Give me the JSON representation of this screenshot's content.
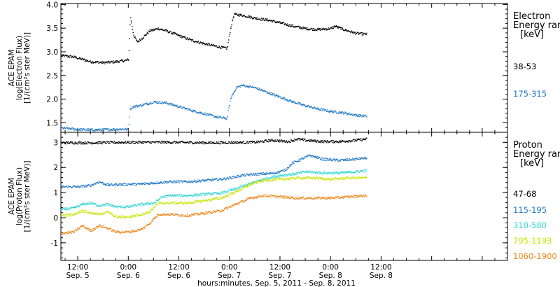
{
  "chart_data": {
    "type": "scatter",
    "x_axis": {
      "title": "hours:minutes, Sep.  5, 2011 - Sep.  8, 2011",
      "range_hours": [
        -16,
        90
      ],
      "ticks": [
        {
          "hours": -12,
          "time": "12:00",
          "day": "Sep.  5"
        },
        {
          "hours": 0,
          "time": "0:00",
          "day": "Sep.  6"
        },
        {
          "hours": 12,
          "time": "12:00",
          "day": "Sep.  6"
        },
        {
          "hours": 24,
          "time": "0:00",
          "day": "Sep.  7"
        },
        {
          "hours": 36,
          "time": "12:00",
          "day": "Sep.  7"
        },
        {
          "hours": 48,
          "time": "0:00",
          "day": "Sep.  8"
        },
        {
          "hours": 60,
          "time": "12:00",
          "day": "Sep.  8"
        }
      ]
    },
    "panels": [
      {
        "id": "electron",
        "ylabel": [
          "ACE EPAM",
          "log(Electron Flux)",
          "[1/(cm²s ster MeV)]"
        ],
        "ylim": [
          1.3,
          4.02
        ],
        "yticks": [
          "1.5",
          "2.0",
          "2.5",
          "3.0",
          "3.5",
          "4.0"
        ],
        "legend_title": [
          "Electron",
          "Energy ranges",
          "[keV]"
        ],
        "series": [
          {
            "name": "38-53",
            "color": "#000000",
            "points": [
              [
                -16,
                2.93
              ],
              [
                -13,
                2.9
              ],
              [
                -11,
                2.85
              ],
              [
                -9,
                2.8
              ],
              [
                -6,
                2.78
              ],
              [
                -3,
                2.8
              ],
              [
                -0.5,
                2.83
              ],
              [
                0,
                2.85
              ],
              [
                0.4,
                3.75
              ],
              [
                1.2,
                3.35
              ],
              [
                2,
                3.22
              ],
              [
                3,
                3.28
              ],
              [
                5,
                3.45
              ],
              [
                7,
                3.5
              ],
              [
                9,
                3.45
              ],
              [
                12,
                3.35
              ],
              [
                15,
                3.25
              ],
              [
                18,
                3.18
              ],
              [
                21,
                3.12
              ],
              [
                23.4,
                3.08
              ],
              [
                23.6,
                3.2
              ],
              [
                24.3,
                3.55
              ],
              [
                25,
                3.8
              ],
              [
                27,
                3.78
              ],
              [
                30,
                3.72
              ],
              [
                33,
                3.68
              ],
              [
                36,
                3.62
              ],
              [
                39,
                3.55
              ],
              [
                42,
                3.5
              ],
              [
                45,
                3.48
              ],
              [
                48,
                3.5
              ],
              [
                49,
                3.55
              ],
              [
                51,
                3.48
              ],
              [
                54,
                3.4
              ],
              [
                56.5,
                3.38
              ]
            ]
          },
          {
            "name": "175-315",
            "color": "#1f78c8",
            "points": [
              [
                -16,
                1.4
              ],
              [
                -12,
                1.37
              ],
              [
                -8,
                1.36
              ],
              [
                -4,
                1.37
              ],
              [
                -1,
                1.38
              ],
              [
                0,
                1.36
              ],
              [
                0.3,
                1.8
              ],
              [
                1,
                1.85
              ],
              [
                3,
                1.88
              ],
              [
                6,
                1.95
              ],
              [
                9,
                1.93
              ],
              [
                12,
                1.85
              ],
              [
                15,
                1.77
              ],
              [
                18,
                1.7
              ],
              [
                21,
                1.63
              ],
              [
                23.4,
                1.6
              ],
              [
                23.6,
                1.75
              ],
              [
                24.3,
                2.05
              ],
              [
                25.5,
                2.25
              ],
              [
                27,
                2.3
              ],
              [
                30,
                2.25
              ],
              [
                33,
                2.15
              ],
              [
                36,
                2.05
              ],
              [
                39,
                1.95
              ],
              [
                42,
                1.87
              ],
              [
                45,
                1.8
              ],
              [
                48,
                1.75
              ],
              [
                51,
                1.72
              ],
              [
                54,
                1.67
              ],
              [
                56.5,
                1.65
              ]
            ]
          }
        ]
      },
      {
        "id": "proton",
        "ylabel": [
          "ACE EPAM",
          "log(Proton Flux)",
          "[1/(cm²s ster MeV)]"
        ],
        "ylim": [
          -1.7,
          3.4
        ],
        "yticks": [
          "-1",
          "0",
          "1",
          "2",
          "3"
        ],
        "legend_title": [
          "Proton",
          "Energy ranges",
          "[keV]"
        ],
        "series": [
          {
            "name": "47-68",
            "color": "#000000",
            "points": [
              [
                -16,
                3.0
              ],
              [
                -8,
                3.0
              ],
              [
                0,
                3.02
              ],
              [
                10,
                3.02
              ],
              [
                20,
                3.0
              ],
              [
                30,
                3.02
              ],
              [
                34,
                3.1
              ],
              [
                38,
                3.05
              ],
              [
                40,
                3.15
              ],
              [
                42,
                3.1
              ],
              [
                46,
                3.05
              ],
              [
                50,
                3.05
              ],
              [
                54,
                3.1
              ],
              [
                56.5,
                3.15
              ]
            ]
          },
          {
            "name": "115-195",
            "color": "#1f78c8",
            "points": [
              [
                -16,
                1.25
              ],
              [
                -12,
                1.25
              ],
              [
                -9,
                1.3
              ],
              [
                -7,
                1.45
              ],
              [
                -5,
                1.32
              ],
              [
                -1,
                1.35
              ],
              [
                2,
                1.35
              ],
              [
                6,
                1.4
              ],
              [
                10,
                1.45
              ],
              [
                14,
                1.45
              ],
              [
                18,
                1.5
              ],
              [
                22,
                1.55
              ],
              [
                24,
                1.6
              ],
              [
                27,
                1.7
              ],
              [
                30,
                1.75
              ],
              [
                34,
                1.78
              ],
              [
                37,
                1.9
              ],
              [
                39,
                2.2
              ],
              [
                41,
                2.35
              ],
              [
                43,
                2.5
              ],
              [
                46,
                2.35
              ],
              [
                50,
                2.3
              ],
              [
                54,
                2.35
              ],
              [
                56.5,
                2.4
              ]
            ]
          },
          {
            "name": "310-580",
            "color": "#2ed6d6",
            "points": [
              [
                -16,
                0.35
              ],
              [
                -13,
                0.4
              ],
              [
                -11,
                0.55
              ],
              [
                -9,
                0.6
              ],
              [
                -7,
                0.5
              ],
              [
                -5,
                0.55
              ],
              [
                -3,
                0.45
              ],
              [
                0,
                0.45
              ],
              [
                3,
                0.55
              ],
              [
                6,
                0.6
              ],
              [
                8,
                0.85
              ],
              [
                10,
                0.9
              ],
              [
                14,
                0.9
              ],
              [
                18,
                0.95
              ],
              [
                22,
                1.0
              ],
              [
                26,
                1.2
              ],
              [
                30,
                1.45
              ],
              [
                33,
                1.6
              ],
              [
                36,
                1.7
              ],
              [
                39,
                1.75
              ],
              [
                42,
                1.85
              ],
              [
                46,
                1.8
              ],
              [
                50,
                1.8
              ],
              [
                54,
                1.85
              ],
              [
                56.5,
                1.9
              ]
            ]
          },
          {
            "name": "795-1193",
            "color": "#c6e600",
            "points": [
              [
                -16,
                0.1
              ],
              [
                -13,
                0.15
              ],
              [
                -11,
                0.3
              ],
              [
                -9,
                0.2
              ],
              [
                -7,
                0.15
              ],
              [
                -5,
                0.25
              ],
              [
                -3,
                0.05
              ],
              [
                0,
                0.05
              ],
              [
                3,
                0.15
              ],
              [
                5,
                0.25
              ],
              [
                7,
                0.6
              ],
              [
                10,
                0.6
              ],
              [
                14,
                0.6
              ],
              [
                18,
                0.7
              ],
              [
                22,
                0.8
              ],
              [
                26,
                1.1
              ],
              [
                29,
                1.35
              ],
              [
                32,
                1.5
              ],
              [
                36,
                1.55
              ],
              [
                40,
                1.6
              ],
              [
                44,
                1.6
              ],
              [
                48,
                1.55
              ],
              [
                52,
                1.6
              ],
              [
                56.5,
                1.6
              ]
            ]
          },
          {
            "name": "1060-1900",
            "color": "#ef8718",
            "points": [
              [
                -16,
                -0.6
              ],
              [
                -13,
                -0.55
              ],
              [
                -11,
                -0.3
              ],
              [
                -9,
                -0.5
              ],
              [
                -7,
                -0.3
              ],
              [
                -5,
                -0.4
              ],
              [
                -3,
                -0.55
              ],
              [
                0,
                -0.55
              ],
              [
                3,
                -0.45
              ],
              [
                5,
                -0.2
              ],
              [
                7,
                0.15
              ],
              [
                10,
                0.15
              ],
              [
                14,
                0.1
              ],
              [
                18,
                0.2
              ],
              [
                22,
                0.3
              ],
              [
                26,
                0.6
              ],
              [
                29,
                0.8
              ],
              [
                32,
                0.9
              ],
              [
                36,
                0.85
              ],
              [
                40,
                0.8
              ],
              [
                44,
                0.8
              ],
              [
                48,
                0.8
              ],
              [
                52,
                0.85
              ],
              [
                56.5,
                0.9
              ]
            ]
          }
        ]
      }
    ]
  }
}
